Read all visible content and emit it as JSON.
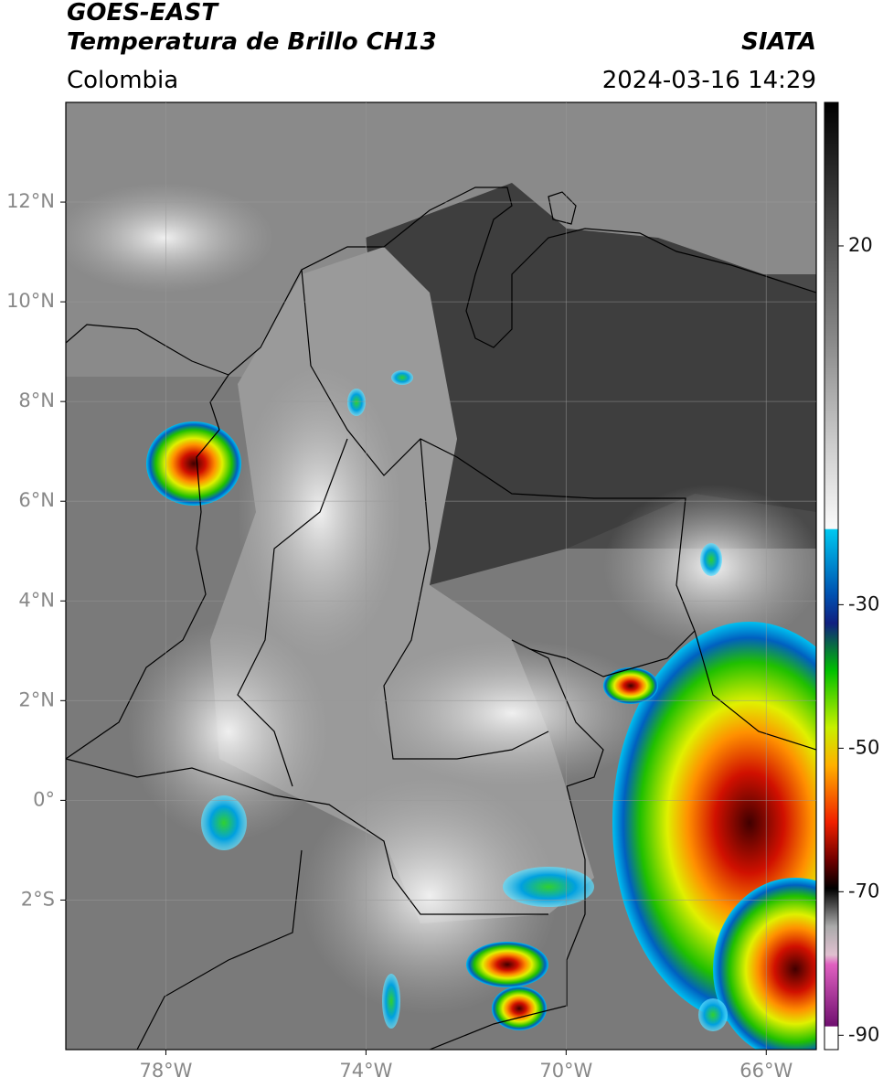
{
  "header": {
    "title": "GOES-EAST",
    "subtitle": "Temperatura de Brillo CH13",
    "source": "SIATA",
    "region": "Colombia",
    "datetime": "2024-03-16 14:29"
  },
  "map": {
    "xlim": [
      -80,
      -65
    ],
    "ylim": [
      -5,
      14
    ],
    "xticks": [
      {
        "value": -78,
        "label": "78°W"
      },
      {
        "value": -74,
        "label": "74°W"
      },
      {
        "value": -70,
        "label": "70°W"
      },
      {
        "value": -66,
        "label": "66°W"
      }
    ],
    "yticks": [
      {
        "value": 12,
        "label": "12°N"
      },
      {
        "value": 10,
        "label": "10°N"
      },
      {
        "value": 8,
        "label": "8°N"
      },
      {
        "value": 6,
        "label": "6°N"
      },
      {
        "value": 4,
        "label": "4°N"
      },
      {
        "value": 2,
        "label": "2°N"
      },
      {
        "value": 0,
        "label": "0°"
      },
      {
        "value": -2,
        "label": "2°S"
      }
    ],
    "grid": true
  },
  "colorbar": {
    "lim": [
      -92,
      40
    ],
    "ticks": [
      20,
      -30,
      -50,
      -70,
      -90
    ]
  }
}
